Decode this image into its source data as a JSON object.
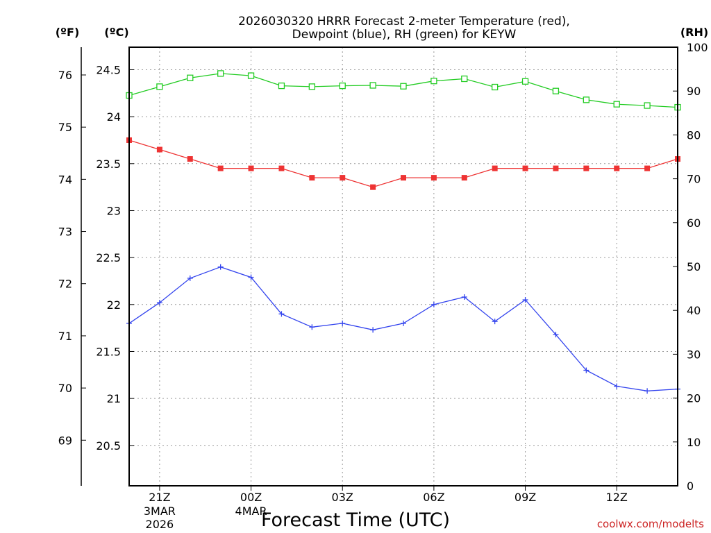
{
  "chart_data": {
    "type": "line",
    "title_line1": "2026030320 HRRR Forecast 2-meter Temperature (red),",
    "title_line2": "Dewpoint (blue), RH (green) for KEYW",
    "xlabel": "Forecast Time (UTC)",
    "watermark": "coolwx.com/modelts",
    "units": {
      "fahrenheit": "(ºF)",
      "celsius": "(ºC)",
      "rh": "(RH)"
    },
    "x_hours": [
      0,
      1,
      2,
      3,
      4,
      5,
      6,
      7,
      8,
      9,
      10,
      11,
      12,
      13,
      14,
      15,
      16,
      17,
      18
    ],
    "x_ticks": [
      {
        "hour": 1,
        "label": "21Z",
        "sub1": "3MAR",
        "sub2": "2026"
      },
      {
        "hour": 4,
        "label": "00Z",
        "sub1": "4MAR",
        "sub2": ""
      },
      {
        "hour": 7,
        "label": "03Z",
        "sub1": "",
        "sub2": ""
      },
      {
        "hour": 10,
        "label": "06Z",
        "sub1": "",
        "sub2": ""
      },
      {
        "hour": 13,
        "label": "09Z",
        "sub1": "",
        "sub2": ""
      },
      {
        "hour": 16,
        "label": "12Z",
        "sub1": "",
        "sub2": ""
      }
    ],
    "celsius_axis": {
      "range": [
        20.07,
        24.74
      ],
      "ticks": [
        "20.5",
        "21",
        "21.5",
        "22",
        "22.5",
        "23",
        "23.5",
        "24",
        "24.5"
      ]
    },
    "fahrenheit_axis": {
      "ticks": [
        "69",
        "70",
        "71",
        "72",
        "73",
        "74",
        "75",
        "76"
      ]
    },
    "rh_axis": {
      "range": [
        0,
        100
      ],
      "ticks": [
        "0",
        "10",
        "20",
        "30",
        "40",
        "50",
        "60",
        "70",
        "80",
        "90",
        "100"
      ]
    },
    "series": [
      {
        "name": "Temperature",
        "unit": "C",
        "color": "#ee3333",
        "marker": "filled-square",
        "values": [
          23.75,
          23.65,
          23.55,
          23.45,
          23.45,
          23.45,
          23.35,
          23.35,
          23.25,
          23.35,
          23.35,
          23.35,
          23.45,
          23.45,
          23.45,
          23.45,
          23.45,
          23.45,
          23.55
        ]
      },
      {
        "name": "Dewpoint",
        "unit": "C",
        "color": "#3344ee",
        "marker": "plus",
        "values": [
          21.8,
          22.02,
          22.28,
          22.4,
          22.29,
          21.9,
          21.76,
          21.8,
          21.73,
          21.8,
          22.0,
          22.08,
          21.82,
          22.05,
          21.68,
          21.3,
          21.13,
          21.08,
          21.1
        ]
      },
      {
        "name": "RH",
        "unit": "%",
        "color": "#22cc22",
        "marker": "open-square",
        "values": [
          89,
          91,
          93,
          94,
          93.5,
          91.2,
          91,
          91.2,
          91.3,
          91.1,
          92.3,
          92.8,
          90.9,
          92.2,
          90,
          88,
          87,
          86.7,
          86.3
        ]
      }
    ]
  }
}
